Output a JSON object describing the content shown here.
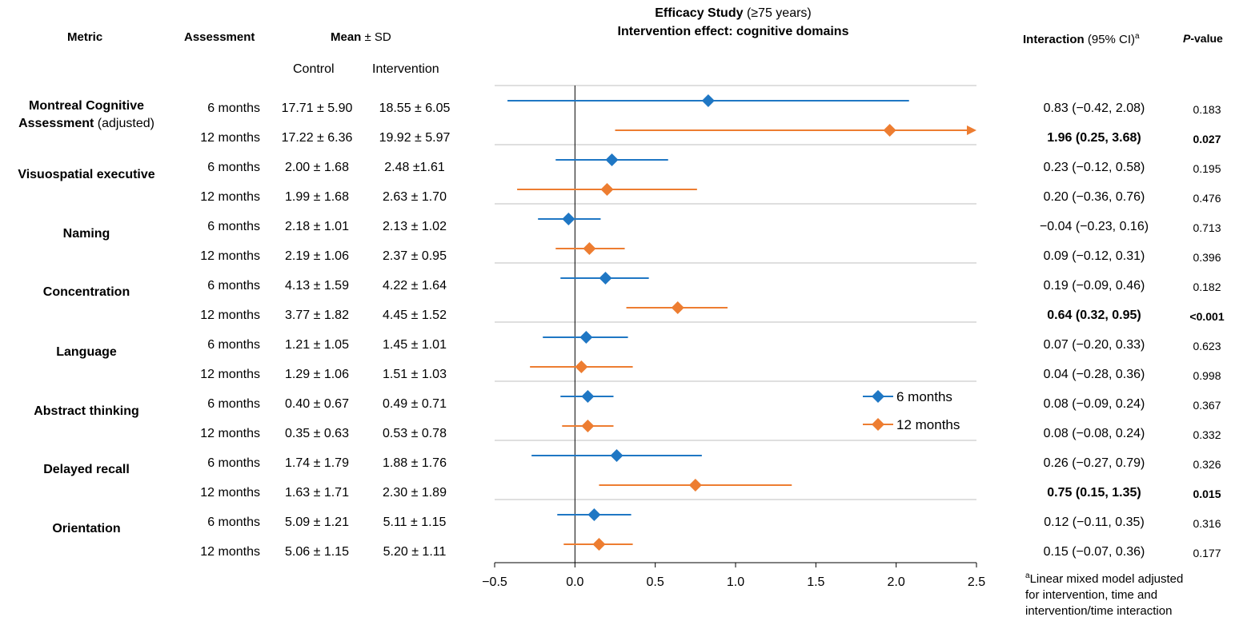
{
  "headers": {
    "metric": "Metric",
    "assessment": "Assessment",
    "mean_sd_bold": "Mean",
    "mean_sd_rest": " ± SD",
    "control": "Control",
    "intervention": "Intervention",
    "interaction_bold": "Interaction",
    "interaction_rest": " (95% CI)",
    "interaction_sup": "a",
    "pvalue_italic": "P",
    "pvalue_rest": "-value"
  },
  "title": {
    "line1_bold": "Efficacy Study",
    "line1_rest": " (≥75 years)",
    "line2": "Intervention effect: cognitive domains"
  },
  "metrics": [
    {
      "line1": "Montreal Cognitive",
      "line2_bold": "Assessment",
      "line2_rest": " (adjusted)"
    },
    {
      "line1": "Visuospatial executive"
    },
    {
      "line1": "Naming"
    },
    {
      "line1": "Concentration"
    },
    {
      "line1": "Language"
    },
    {
      "line1": "Abstract thinking"
    },
    {
      "line1": "Delayed recall"
    },
    {
      "line1": "Orientation"
    }
  ],
  "rows": [
    {
      "assessment": "6 months",
      "control": "17.71 ± 5.90",
      "intervention": "18.55 ± 6.05",
      "ci_text": "0.83 (−0.42, 2.08)",
      "p": "0.183",
      "bold": false
    },
    {
      "assessment": "12 months",
      "control": "17.22 ± 6.36",
      "intervention": "19.92 ± 5.97",
      "ci_text": "1.96 (0.25, 3.68)",
      "p": "0.027",
      "bold": true
    },
    {
      "assessment": "6 months",
      "control": "2.00 ± 1.68",
      "intervention": "2.48 ±1.61",
      "ci_text": "0.23 (−0.12, 0.58)",
      "p": "0.195",
      "bold": false
    },
    {
      "assessment": "12 months",
      "control": "1.99 ± 1.68",
      "intervention": "2.63 ± 1.70",
      "ci_text": "0.20 (−0.36, 0.76)",
      "p": "0.476",
      "bold": false
    },
    {
      "assessment": "6 months",
      "control": "2.18 ± 1.01",
      "intervention": "2.13 ± 1.02",
      "ci_text": "−0.04 (−0.23, 0.16)",
      "p": "0.713",
      "bold": false
    },
    {
      "assessment": "12 months",
      "control": "2.19 ± 1.06",
      "intervention": "2.37 ± 0.95",
      "ci_text": "0.09 (−0.12, 0.31)",
      "p": "0.396",
      "bold": false
    },
    {
      "assessment": "6 months",
      "control": "4.13 ± 1.59",
      "intervention": "4.22 ± 1.64",
      "ci_text": "0.19 (−0.09, 0.46)",
      "p": "0.182",
      "bold": false
    },
    {
      "assessment": "12 months",
      "control": "3.77 ± 1.82",
      "intervention": "4.45 ± 1.52",
      "ci_text": "0.64 (0.32, 0.95)",
      "p": "<0.001",
      "bold": true
    },
    {
      "assessment": "6 months",
      "control": "1.21 ± 1.05",
      "intervention": "1.45 ± 1.01",
      "ci_text": "0.07 (−0.20, 0.33)",
      "p": "0.623",
      "bold": false
    },
    {
      "assessment": "12 months",
      "control": "1.29 ± 1.06",
      "intervention": "1.51 ± 1.03",
      "ci_text": "0.04 (−0.28, 0.36)",
      "p": "0.998",
      "bold": false
    },
    {
      "assessment": "6 months",
      "control": "0.40 ± 0.67",
      "intervention": "0.49 ± 0.71",
      "ci_text": "0.08 (−0.09, 0.24)",
      "p": "0.367",
      "bold": false
    },
    {
      "assessment": "12 months",
      "control": "0.35 ± 0.63",
      "intervention": "0.53 ± 0.78",
      "ci_text": "0.08 (−0.08, 0.24)",
      "p": "0.332",
      "bold": false
    },
    {
      "assessment": "6 months",
      "control": "1.74 ± 1.79",
      "intervention": "1.88 ± 1.76",
      "ci_text": "0.26 (−0.27, 0.79)",
      "p": "0.326",
      "bold": false
    },
    {
      "assessment": "12 months",
      "control": "1.63 ± 1.71",
      "intervention": "2.30 ± 1.89",
      "ci_text": "0.75 (0.15, 1.35)",
      "p": "0.015",
      "bold": true
    },
    {
      "assessment": "6 months",
      "control": "5.09 ± 1.21",
      "intervention": "5.11 ± 1.15",
      "ci_text": "0.12 (−0.11, 0.35)",
      "p": "0.316",
      "bold": false
    },
    {
      "assessment": "12 months",
      "control": "5.06 ± 1.15",
      "intervention": "5.20 ± 1.11",
      "ci_text": "0.15 (−0.07, 0.36)",
      "p": "0.177",
      "bold": false
    }
  ],
  "footnote": {
    "sup": "a",
    "line1": "Linear mixed model adjusted",
    "line2": "for intervention, time and",
    "line3": "intervention/time interaction"
  },
  "chart_data": {
    "type": "scatter",
    "subtype": "forest",
    "xlim": [
      -0.5,
      2.5
    ],
    "xticks": [
      "−0.5",
      "0.0",
      "0.5",
      "1.0",
      "1.5",
      "2.0",
      "2.5"
    ],
    "xtick_values": [
      -0.5,
      0,
      0.5,
      1.0,
      1.5,
      2.0,
      2.5
    ],
    "reference_line": 0,
    "grid": false,
    "legend_position": "right",
    "colors": {
      "6 months": "#1f77c4",
      "12 months": "#ed7d31"
    },
    "series": [
      {
        "name": "6 months",
        "color": "#1f77c4",
        "categories": [
          "Montreal Cognitive Assessment (adjusted)",
          "Visuospatial executive",
          "Naming",
          "Concentration",
          "Language",
          "Abstract thinking",
          "Delayed recall",
          "Orientation"
        ],
        "estimate": [
          0.83,
          0.23,
          -0.04,
          0.19,
          0.07,
          0.08,
          0.26,
          0.12
        ],
        "lower": [
          -0.42,
          -0.12,
          -0.23,
          -0.09,
          -0.2,
          -0.09,
          -0.27,
          -0.11
        ],
        "upper": [
          2.08,
          0.58,
          0.16,
          0.46,
          0.33,
          0.24,
          0.79,
          0.35
        ]
      },
      {
        "name": "12 months",
        "color": "#ed7d31",
        "categories": [
          "Montreal Cognitive Assessment (adjusted)",
          "Visuospatial executive",
          "Naming",
          "Concentration",
          "Language",
          "Abstract thinking",
          "Delayed recall",
          "Orientation"
        ],
        "estimate": [
          1.96,
          0.2,
          0.09,
          0.64,
          0.04,
          0.08,
          0.75,
          0.15
        ],
        "lower": [
          0.25,
          -0.36,
          -0.12,
          0.32,
          -0.28,
          -0.08,
          0.15,
          -0.07
        ],
        "upper": [
          3.68,
          0.76,
          0.31,
          0.95,
          0.36,
          0.24,
          1.35,
          0.36
        ]
      }
    ]
  }
}
